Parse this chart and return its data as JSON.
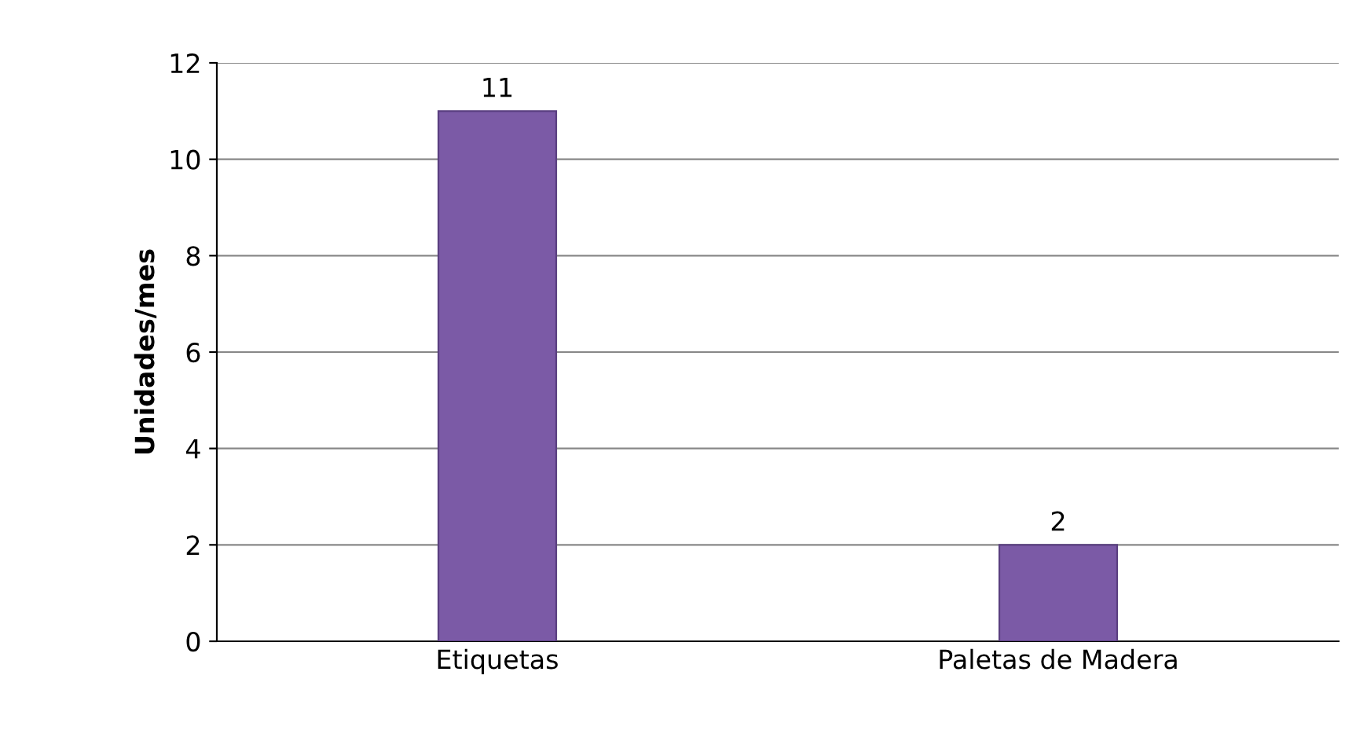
{
  "chart_data": {
    "type": "bar",
    "ylabel": "Unidades/mes",
    "categories": [
      "Etiquetas",
      "Paletas de Madera"
    ],
    "values": [
      11,
      2
    ],
    "color": "#7b5aa6",
    "ylim": [
      0,
      12
    ],
    "yticks": [
      0,
      2,
      4,
      6,
      8,
      10,
      12
    ],
    "grid": "y",
    "data_labels": true
  }
}
